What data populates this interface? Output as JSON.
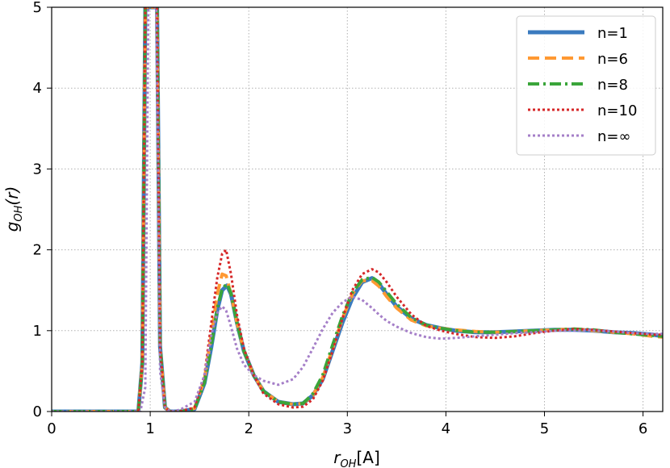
{
  "chart_data": {
    "type": "line",
    "xlabel": "r_OH[A]",
    "ylabel": "g_OH(r)",
    "xlim": [
      0,
      6.2
    ],
    "ylim": [
      0,
      5
    ],
    "xticks": [
      0,
      1,
      2,
      3,
      4,
      5,
      6
    ],
    "yticks": [
      0,
      1,
      2,
      3,
      4,
      5
    ],
    "grid": true,
    "grid_style": "dotted",
    "legend_position": "upper right",
    "series": [
      {
        "name": "n=1",
        "color": "#3a7bbf",
        "style": "solid",
        "x": [
          0,
          0.88,
          0.92,
          0.95,
          1.0,
          1.03,
          1.07,
          1.1,
          1.15,
          1.2,
          1.3,
          1.45,
          1.55,
          1.62,
          1.68,
          1.73,
          1.78,
          1.82,
          1.88,
          1.95,
          2.05,
          2.15,
          2.3,
          2.45,
          2.55,
          2.65,
          2.75,
          2.85,
          2.95,
          3.05,
          3.15,
          3.25,
          3.32,
          3.4,
          3.5,
          3.65,
          3.8,
          3.95,
          4.1,
          4.3,
          4.5,
          4.7,
          4.9,
          5.1,
          5.3,
          5.5,
          5.7,
          5.9,
          6.1,
          6.2
        ],
        "y": [
          0,
          0,
          0.6,
          5,
          5,
          5,
          5,
          0.8,
          0.05,
          0,
          0,
          0.03,
          0.35,
          0.8,
          1.25,
          1.5,
          1.56,
          1.45,
          1.1,
          0.75,
          0.45,
          0.25,
          0.12,
          0.09,
          0.1,
          0.2,
          0.4,
          0.75,
          1.1,
          1.4,
          1.6,
          1.65,
          1.58,
          1.45,
          1.3,
          1.15,
          1.07,
          1.03,
          1.0,
          0.98,
          0.98,
          0.99,
          1.0,
          1.01,
          1.01,
          1.0,
          0.98,
          0.97,
          0.95,
          0.93
        ]
      },
      {
        "name": "n=6",
        "color": "#ff9933",
        "style": "dashed",
        "x": [
          0,
          0.88,
          0.92,
          0.95,
          1.0,
          1.03,
          1.07,
          1.1,
          1.15,
          1.2,
          1.3,
          1.45,
          1.55,
          1.62,
          1.68,
          1.73,
          1.77,
          1.82,
          1.88,
          1.95,
          2.05,
          2.15,
          2.3,
          2.45,
          2.55,
          2.65,
          2.75,
          2.85,
          2.95,
          3.05,
          3.15,
          3.25,
          3.32,
          3.4,
          3.5,
          3.65,
          3.8,
          3.95,
          4.1,
          4.3,
          4.5,
          4.7,
          4.9,
          5.1,
          5.3,
          5.5,
          5.7,
          5.9,
          6.1,
          6.2
        ],
        "y": [
          0,
          0,
          0.6,
          5,
          5,
          5,
          5,
          0.8,
          0.05,
          0,
          0,
          0.04,
          0.4,
          0.95,
          1.45,
          1.7,
          1.68,
          1.45,
          1.1,
          0.75,
          0.45,
          0.25,
          0.12,
          0.09,
          0.1,
          0.2,
          0.42,
          0.78,
          1.15,
          1.45,
          1.62,
          1.62,
          1.55,
          1.42,
          1.28,
          1.13,
          1.06,
          1.03,
          1.01,
          0.99,
          0.98,
          0.99,
          1.0,
          1.01,
          1.02,
          1.0,
          0.98,
          0.96,
          0.93,
          0.92
        ]
      },
      {
        "name": "n=8",
        "color": "#3aa53a",
        "style": "dashdot",
        "x": [
          0,
          0.88,
          0.92,
          0.95,
          1.0,
          1.03,
          1.07,
          1.1,
          1.15,
          1.2,
          1.3,
          1.45,
          1.55,
          1.62,
          1.68,
          1.73,
          1.78,
          1.82,
          1.88,
          1.95,
          2.05,
          2.15,
          2.3,
          2.45,
          2.55,
          2.65,
          2.75,
          2.85,
          2.95,
          3.05,
          3.15,
          3.25,
          3.32,
          3.4,
          3.5,
          3.65,
          3.8,
          3.95,
          4.1,
          4.3,
          4.5,
          4.7,
          4.9,
          5.1,
          5.3,
          5.5,
          5.7,
          5.9,
          6.1,
          6.2
        ],
        "y": [
          0,
          0,
          0.6,
          5,
          5,
          5,
          5,
          0.8,
          0.05,
          0,
          0,
          0.03,
          0.36,
          0.82,
          1.27,
          1.52,
          1.58,
          1.46,
          1.1,
          0.75,
          0.45,
          0.25,
          0.12,
          0.09,
          0.1,
          0.22,
          0.45,
          0.82,
          1.18,
          1.47,
          1.63,
          1.66,
          1.6,
          1.48,
          1.33,
          1.16,
          1.07,
          1.03,
          1.0,
          0.98,
          0.98,
          0.99,
          1.0,
          1.01,
          1.02,
          1.01,
          0.98,
          0.96,
          0.94,
          0.93
        ]
      },
      {
        "name": "n=10",
        "color": "#d62728",
        "style": "dotted",
        "x": [
          0,
          0.88,
          0.92,
          0.95,
          1.0,
          1.03,
          1.07,
          1.1,
          1.15,
          1.2,
          1.3,
          1.45,
          1.55,
          1.62,
          1.68,
          1.73,
          1.77,
          1.82,
          1.88,
          1.95,
          2.05,
          2.15,
          2.3,
          2.45,
          2.55,
          2.65,
          2.75,
          2.85,
          2.95,
          3.05,
          3.15,
          3.25,
          3.32,
          3.4,
          3.5,
          3.65,
          3.8,
          3.95,
          4.1,
          4.3,
          4.5,
          4.7,
          4.9,
          5.1,
          5.3,
          5.5,
          5.7,
          5.9,
          6.1,
          6.2
        ],
        "y": [
          0,
          0,
          0.6,
          5,
          5,
          5,
          5,
          0.8,
          0.05,
          0,
          0,
          0.05,
          0.45,
          1.1,
          1.65,
          1.95,
          2.0,
          1.7,
          1.2,
          0.78,
          0.45,
          0.22,
          0.09,
          0.05,
          0.06,
          0.15,
          0.38,
          0.75,
          1.15,
          1.5,
          1.7,
          1.76,
          1.72,
          1.6,
          1.42,
          1.2,
          1.06,
          1.0,
          0.96,
          0.92,
          0.91,
          0.93,
          0.97,
          1.0,
          1.02,
          1.01,
          0.99,
          0.97,
          0.95,
          0.95
        ]
      },
      {
        "name": "n=∞",
        "color": "#a57fc8",
        "style": "dotted",
        "x": [
          0,
          0.9,
          0.95,
          0.98,
          1.02,
          1.06,
          1.08,
          1.1,
          1.15,
          1.2,
          1.3,
          1.45,
          1.55,
          1.62,
          1.68,
          1.73,
          1.77,
          1.82,
          1.88,
          1.95,
          2.05,
          2.15,
          2.3,
          2.45,
          2.55,
          2.65,
          2.75,
          2.85,
          2.95,
          3.05,
          3.15,
          3.25,
          3.32,
          3.4,
          3.5,
          3.65,
          3.8,
          3.95,
          4.1,
          4.3,
          4.5,
          4.7,
          4.9,
          5.1,
          5.3,
          5.5,
          5.7,
          5.9,
          6.1,
          6.2
        ],
        "y": [
          0,
          0,
          0.3,
          5,
          5,
          5,
          3,
          0.5,
          0.05,
          0,
          0.02,
          0.12,
          0.45,
          0.95,
          1.22,
          1.3,
          1.25,
          1.05,
          0.78,
          0.58,
          0.45,
          0.38,
          0.33,
          0.4,
          0.55,
          0.78,
          1.02,
          1.22,
          1.35,
          1.42,
          1.38,
          1.28,
          1.2,
          1.12,
          1.05,
          0.97,
          0.92,
          0.9,
          0.91,
          0.93,
          0.95,
          0.97,
          0.98,
          1.0,
          1.0,
          1.0,
          0.99,
          0.97,
          0.96,
          0.96
        ]
      }
    ]
  }
}
